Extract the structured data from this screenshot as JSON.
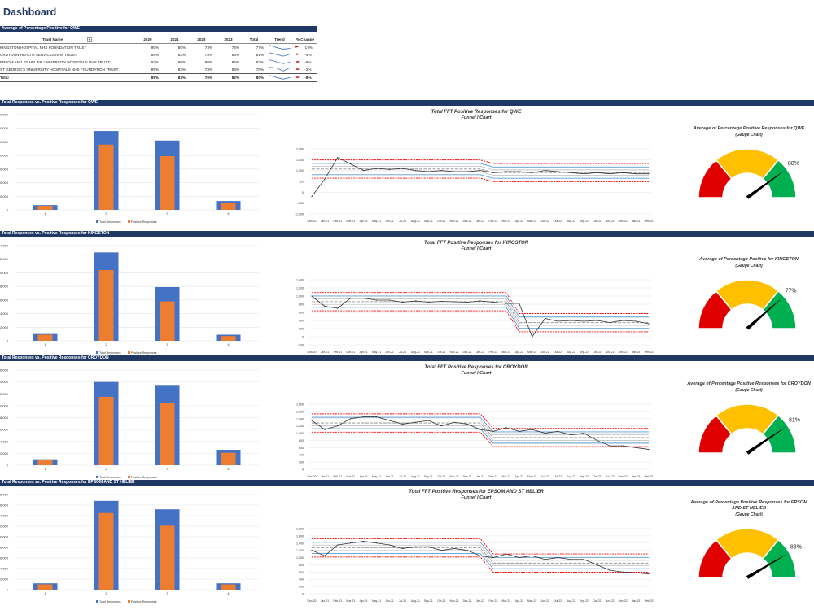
{
  "header": {
    "title": "Dashboard"
  },
  "summary": {
    "banner": "Average of Percentage Positive for QWE",
    "columns": [
      "Trust Name",
      "2020",
      "2021",
      "2022",
      "2023",
      "Total",
      "Trend",
      "% Change"
    ],
    "rows": [
      {
        "name": "KINGSTON HOSPITAL NHS FOUNDATION TRUST",
        "y2020": "90%",
        "y2021": "80%",
        "y2022": "73%",
        "y2023": "76%",
        "total": "77%",
        "change": "-17%",
        "trend": [
          90,
          80,
          73,
          76
        ]
      },
      {
        "name": "CROYDON HEALTH SERVICES NHS TRUST",
        "y2020": "88%",
        "y2021": "83%",
        "y2022": "78%",
        "y2023": "84%",
        "total": "81%",
        "change": "-4%",
        "trend": [
          88,
          83,
          78,
          84
        ]
      },
      {
        "name": "EPSOM AND ST HELIER UNIVERSITY HOSPITALS NHS TRUST",
        "y2020": "92%",
        "y2021": "86%",
        "y2022": "80%",
        "y2023": "85%",
        "total": "83%",
        "change": "-8%",
        "trend": [
          92,
          86,
          80,
          85
        ]
      },
      {
        "name": "ST GEORGE'S UNIVERSITY HOSPITALS NHS FOUNDATION TRUST",
        "y2020": "85%",
        "y2021": "83%",
        "y2022": "73%",
        "y2023": "84%",
        "total": "78%",
        "change": "-2%",
        "trend": [
          85,
          83,
          73,
          84
        ]
      }
    ],
    "total": {
      "name": "Total",
      "y2020": "89%",
      "y2021": "82%",
      "y2022": "76%",
      "y2023": "82%",
      "total": "80%",
      "change": "-8%",
      "trend": [
        89,
        82,
        76,
        82
      ]
    }
  },
  "colors": {
    "navy": "#203864",
    "total_bar": "#4472c4",
    "positive_bar": "#ed7d31",
    "red": "#e00000",
    "amber": "#ffc000",
    "green": "#00b050",
    "mean_line": "#5b9bd5",
    "limit_red": "#ff0000"
  },
  "icons": {
    "trend": "sparkline-icon",
    "flag": "red-flag-icon",
    "filter": "dropdown-filter-icon"
  },
  "legend": {
    "total": "Total Responses",
    "positive": "Positive Responses"
  },
  "funnel_months": [
    "Dec-20",
    "Jan-21",
    "Feb-21",
    "Mar-21",
    "Apr-21",
    "May-21",
    "Jun-21",
    "Jul-21",
    "Aug-21",
    "Sep-21",
    "Oct-21",
    "Nov-21",
    "Dec-21",
    "Jan-22",
    "Feb-22",
    "Mar-22",
    "Apr-22",
    "May-22",
    "Jun-22",
    "Jul-22",
    "Aug-22",
    "Sep-22",
    "Oct-22",
    "Nov-22",
    "Dec-22",
    "Jan-23",
    "Feb-23"
  ],
  "sections": [
    {
      "banner": "Total Responses vs. Positive Responses for QWE",
      "funnel_title": "Total FFT Positive Responses for QWE",
      "funnel_subtitle": "Funnel I Chart",
      "gauge_title": "Average of Percentage Positive Responses for QWE",
      "gauge_subtitle": "(Gauge Chart)",
      "gauge_value": 80,
      "gauge_label": "80%",
      "chart_data": {
        "type": "bar",
        "categories": [
          "1",
          "2",
          "3",
          "4"
        ],
        "ylim": [
          0,
          70000
        ],
        "yticks": [
          "70,000",
          "60,000",
          "50,000",
          "40,000",
          "30,000",
          "20,000",
          "10,000",
          "0"
        ],
        "series": [
          {
            "name": "Total Responses",
            "values": [
              3500,
              58000,
              51000,
              6500
            ]
          },
          {
            "name": "Positive Responses",
            "values": [
              3000,
              48000,
              39500,
              5000
            ]
          }
        ]
      },
      "funnel": {
        "ylim": [
          -1000,
          2000
        ],
        "yticks": [
          "2,000",
          "1,500",
          "1,000",
          "500",
          "0",
          "-500",
          "-1,000"
        ],
        "values": [
          -200,
          600,
          1600,
          1300,
          1000,
          1100,
          1050,
          1100,
          1000,
          950,
          1000,
          950,
          950,
          1000,
          900,
          950,
          950,
          900,
          1000,
          950,
          900,
          850,
          900,
          850,
          900,
          850,
          850
        ]
      }
    },
    {
      "banner": "Total Responses vs. Positive Responses for KINGSTON",
      "funnel_title": "Total FFT Positive Responses for KINGSTON",
      "funnel_subtitle": "Funnel I Chart",
      "gauge_title": "Average of Percentage Positive for KINGSTON",
      "gauge_subtitle": "(Gauge Chart)",
      "gauge_value": 77,
      "gauge_label": "77%",
      "chart_data": {
        "type": "bar",
        "categories": [
          "1",
          "2",
          "3",
          "4"
        ],
        "ylim": [
          0,
          14000
        ],
        "yticks": [
          "14,000",
          "12,000",
          "10,000",
          "8,000",
          "6,000",
          "4,000",
          "2,000",
          "0"
        ],
        "series": [
          {
            "name": "Total Responses",
            "values": [
              1000,
              13000,
              7900,
              900
            ]
          },
          {
            "name": "Positive Responses",
            "values": [
              900,
              10400,
              5800,
              700
            ]
          }
        ]
      },
      "funnel": {
        "ylim": [
          -200,
          1400
        ],
        "yticks": [
          "1,400",
          "1,200",
          "1,000",
          "800",
          "600",
          "400",
          "200",
          "0",
          "-200"
        ],
        "values": [
          1000,
          750,
          700,
          950,
          950,
          900,
          900,
          850,
          880,
          850,
          870,
          860,
          850,
          880,
          850,
          820,
          820,
          0,
          450,
          380,
          400,
          380,
          400,
          350,
          400,
          380,
          320
        ]
      }
    },
    {
      "banner": "Total Responses vs. Positive Responses for CROYDON",
      "funnel_title": "Total FFT Positive Responses for CROYDON",
      "funnel_subtitle": "Funnel I Chart",
      "gauge_title": "Average of Percentage Positive Responses for CROYDON",
      "gauge_subtitle": "(Gauge Chart)",
      "gauge_value": 81,
      "gauge_label": "81%",
      "chart_data": {
        "type": "bar",
        "categories": [
          "1",
          "2",
          "3",
          "4"
        ],
        "ylim": [
          0,
          16000
        ],
        "yticks": [
          "16,000",
          "14,000",
          "12,000",
          "10,000",
          "8,000",
          "6,000",
          "4,000",
          "2,000",
          "0"
        ],
        "series": [
          {
            "name": "Total Responses",
            "values": [
              1000,
              14000,
              13500,
              2600
            ]
          },
          {
            "name": "Positive Responses",
            "values": [
              900,
              11500,
              10500,
              2100
            ]
          }
        ]
      },
      "funnel": {
        "ylim": [
          0,
          1800
        ],
        "yticks": [
          "1,800",
          "1,600",
          "1,400",
          "1,200",
          "1,000",
          "800",
          "600",
          "400",
          "200",
          "0"
        ],
        "values": [
          1350,
          1100,
          1200,
          1400,
          1450,
          1450,
          1350,
          1250,
          1300,
          1350,
          1200,
          1300,
          1250,
          1100,
          1050,
          1150,
          1050,
          1100,
          1000,
          1050,
          950,
          1000,
          800,
          650,
          650,
          600,
          550
        ]
      }
    },
    {
      "banner": "Total Responses vs. Positive Responses for EPSOM AND ST HELIER",
      "funnel_title": "Total FFT Positive Responses for EPSOM AND ST HELIER",
      "funnel_subtitle": "Funnel I Chart",
      "gauge_title": "Average of Percentage Positive Responses for EPSOM AND ST HELIER",
      "gauge_subtitle": "(Gauge Chart)",
      "gauge_value": 83,
      "gauge_label": "83%",
      "chart_data": {
        "type": "bar",
        "categories": [
          "1",
          "2",
          "3",
          "4"
        ],
        "ylim": [
          0,
          18000
        ],
        "yticks": [
          "18,000",
          "16,000",
          "14,000",
          "12,000",
          "10,000",
          "8,000",
          "6,000",
          "4,000",
          "2,000",
          "0"
        ],
        "series": [
          {
            "name": "Total Responses",
            "values": [
              1200,
              16800,
              15200,
              1200
            ]
          },
          {
            "name": "Positive Responses",
            "values": [
              1000,
              14500,
              12100,
              1000
            ]
          }
        ]
      },
      "funnel": {
        "ylim": [
          0,
          1800
        ],
        "yticks": [
          "1,800",
          "1,600",
          "1,400",
          "1,200",
          "1,000",
          "800",
          "600",
          "400",
          "200",
          "0"
        ],
        "values": [
          1200,
          1050,
          1350,
          1400,
          1450,
          1400,
          1350,
          1250,
          1300,
          1300,
          1200,
          1250,
          1200,
          1050,
          1000,
          1100,
          1000,
          1050,
          950,
          1000,
          950,
          950,
          800,
          650,
          600,
          580,
          550
        ]
      }
    }
  ]
}
